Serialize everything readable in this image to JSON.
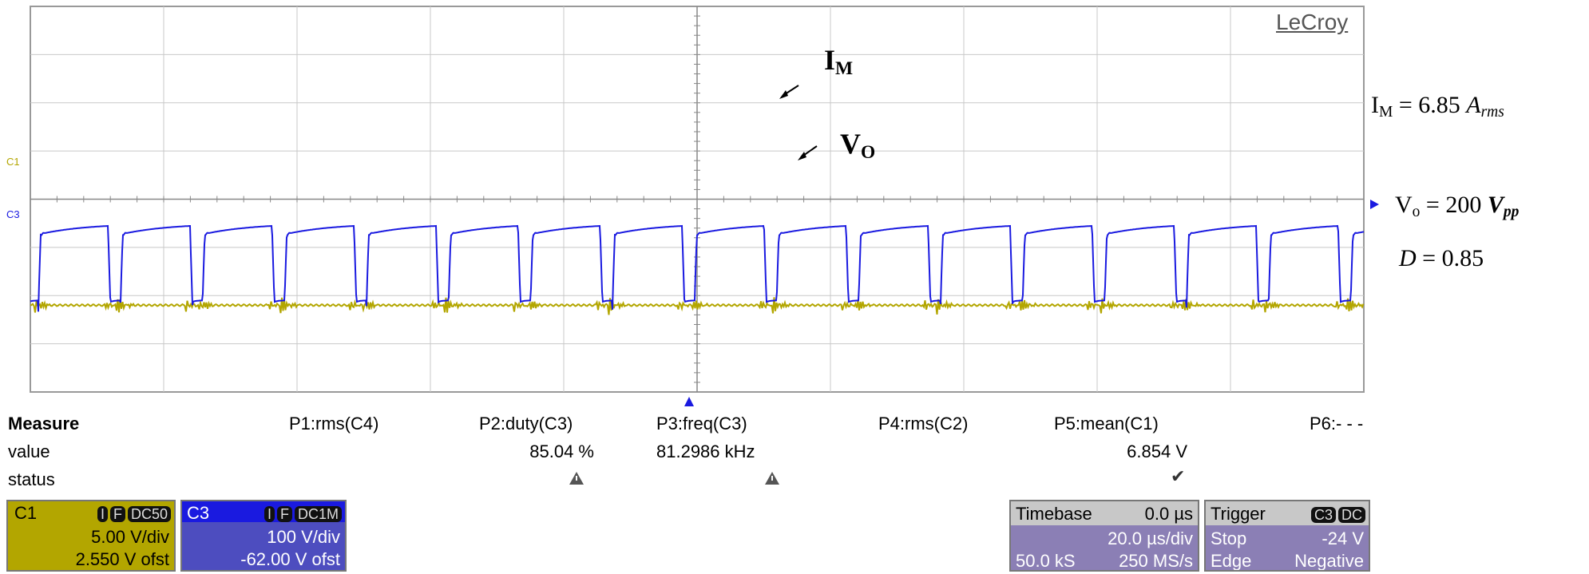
{
  "brand": "LeCroy",
  "channel_labels": {
    "c1": "C1",
    "c3": "C3"
  },
  "annotations": {
    "im_label": "I",
    "im_label_sub": "M",
    "vo_label": "V",
    "vo_label_sub": "O",
    "im_eq_pre": "I",
    "im_eq_sub": "M",
    "im_eq_val": " = 6.85 ",
    "im_eq_unit": "A",
    "im_eq_unit_sub": "rms",
    "vo_eq_pre": "V",
    "vo_eq_sub": "o",
    "vo_eq_val": " = 200 ",
    "vo_eq_unit": "V",
    "vo_eq_unit_sub": "pp",
    "d_eq_var": "D",
    "d_eq_val": " = 0.85"
  },
  "measure": {
    "title": "Measure",
    "row_value": "value",
    "row_status": "status",
    "p1": "P1:rms(C4)",
    "p2": "P2:duty(C3)",
    "p3": "P3:freq(C3)",
    "p4": "P4:rms(C2)",
    "p5": "P5:mean(C1)",
    "p6": "P6:- - -",
    "p2_value": "85.04 %",
    "p3_value": "81.2986 kHz",
    "p5_value": "6.854 V",
    "p2_status": "warning-icon",
    "p3_status": "warning-icon",
    "p5_status": "check-icon"
  },
  "c1_box": {
    "name": "C1",
    "badge1": "I",
    "badge2": "F",
    "badge3": "DC50",
    "vdiv": "5.00 V/div",
    "ofst": "2.550 V ofst"
  },
  "c3_box": {
    "name": "C3",
    "badge1": "I",
    "badge2": "F",
    "badge3": "DC1M",
    "vdiv": "100 V/div",
    "ofst": "-62.00 V ofst"
  },
  "timebase": {
    "label": "Timebase",
    "delay": "0.0 µs",
    "tdiv": "20.0 µs/div",
    "samples": "50.0 kS",
    "rate": "250 MS/s"
  },
  "trigger": {
    "label": "Trigger",
    "badge1": "C3",
    "badge2": "DC",
    "mode": "Stop",
    "level": "-24 V",
    "type": "Edge",
    "slope": "Negative"
  },
  "colors": {
    "c1": "#b3a600",
    "c3": "#1a1ae0",
    "grid": "#999999"
  },
  "chart_data": {
    "type": "line",
    "xlabel": "",
    "ylabel": "",
    "x_divisions": 10,
    "y_divisions": 8,
    "time_per_div_us": 20,
    "series": [
      {
        "name": "I",
        "channel": "C1",
        "level_div": 1.8,
        "burst_period_us": 12.3,
        "color": "#b3a600"
      },
      {
        "name": "V",
        "channel": "C3",
        "high_div": 3.4,
        "low_div": 1.8,
        "period_us": 12.3,
        "duty": 0.85,
        "color": "#1a1ae0"
      }
    ]
  }
}
